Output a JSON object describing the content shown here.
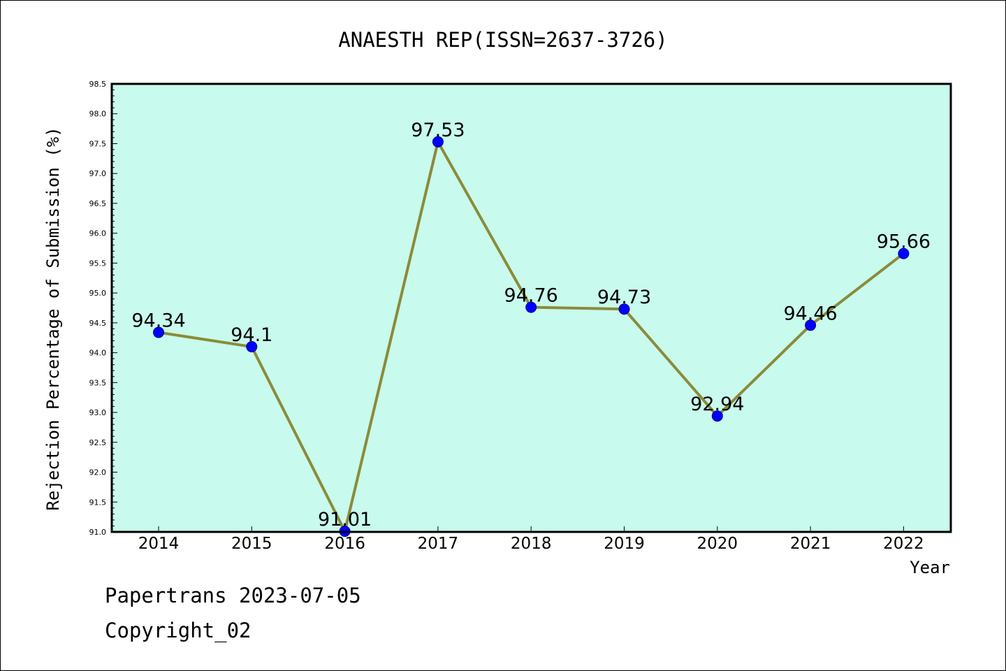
{
  "chart_data": {
    "type": "line",
    "title": "ANAESTH REP(ISSN=2637-3726)",
    "xlabel": "Year",
    "ylabel": "Rejection Percentage of Submission (%)",
    "categories": [
      "2014",
      "2015",
      "2016",
      "2017",
      "2018",
      "2019",
      "2020",
      "2021",
      "2022"
    ],
    "values": [
      94.34,
      94.1,
      91.01,
      97.53,
      94.76,
      94.73,
      92.94,
      94.46,
      95.66
    ],
    "data_labels": [
      "94.34",
      "94.1",
      "91.01",
      "97.53",
      "94.76",
      "94.73",
      "92.94",
      "94.46",
      "95.66"
    ],
    "ylim": [
      91.0,
      98.5
    ],
    "yticks": [
      "91.0",
      "91.5",
      "92.0",
      "92.5",
      "93.0",
      "93.5",
      "94.0",
      "94.5",
      "95.0",
      "95.5",
      "96.0",
      "96.5",
      "97.0",
      "97.5",
      "98.0",
      "98.5"
    ],
    "grid": false,
    "colors": {
      "plot_background": "#c8faed",
      "line": "#8b8b3a",
      "marker": "#0000ff"
    }
  },
  "footer": {
    "line1": "Papertrans 2023-07-05",
    "line2": "Copyright_02"
  }
}
